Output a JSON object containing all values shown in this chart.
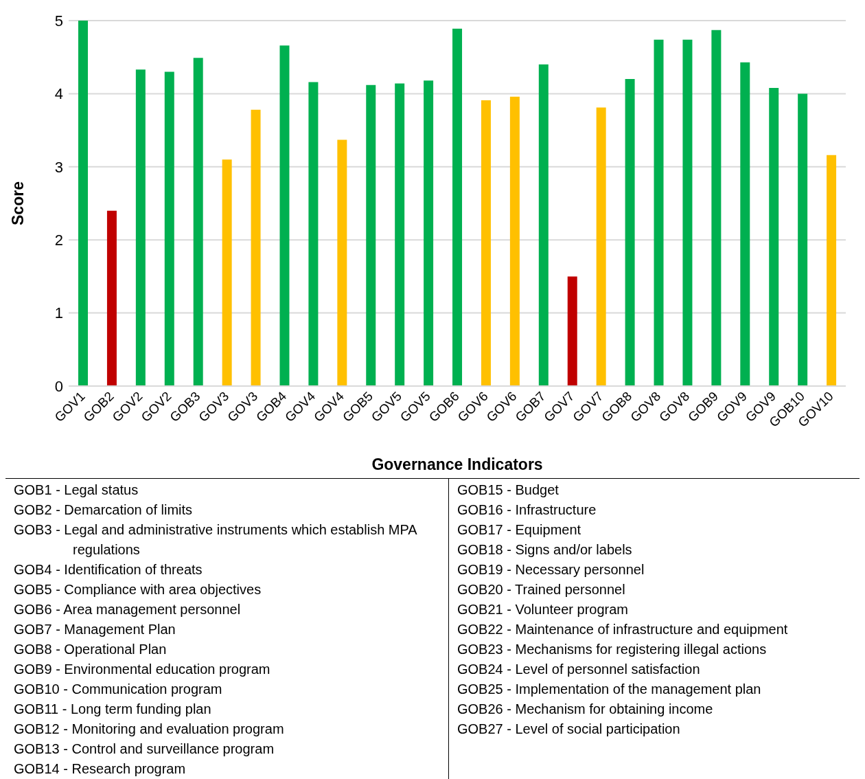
{
  "chart_data": {
    "type": "bar",
    "xlabel": "Governance Indicators",
    "ylabel": "Score",
    "categories": [
      "GOV1",
      "GOB2",
      "GOV2",
      "GOV2",
      "GOB3",
      "GOV3",
      "GOV3",
      "GOB4",
      "GOV4",
      "GOV4",
      "GOB5",
      "GOV5",
      "GOV5",
      "GOB6",
      "GOV6",
      "GOV6",
      "GOB7",
      "GOV7",
      "GOV7",
      "GOB8",
      "GOV8",
      "GOV8",
      "GOB9",
      "GOV9",
      "GOV9",
      "GOB10",
      "GOV10"
    ],
    "values": [
      5.0,
      2.4,
      4.33,
      4.3,
      4.49,
      3.1,
      3.78,
      4.66,
      4.16,
      3.37,
      4.12,
      4.14,
      4.18,
      4.89,
      3.91,
      3.96,
      4.4,
      1.5,
      3.81,
      4.2,
      4.74,
      4.74,
      4.87,
      4.43,
      4.08,
      4.0,
      3.16
    ],
    "colors": [
      "#00b050",
      "#c00000",
      "#00b050",
      "#00b050",
      "#00b050",
      "#ffc000",
      "#ffc000",
      "#00b050",
      "#00b050",
      "#ffc000",
      "#00b050",
      "#00b050",
      "#00b050",
      "#00b050",
      "#ffc000",
      "#ffc000",
      "#00b050",
      "#c00000",
      "#ffc000",
      "#00b050",
      "#00b050",
      "#00b050",
      "#00b050",
      "#00b050",
      "#00b050",
      "#00b050",
      "#ffc000"
    ],
    "ylim": [
      0,
      5
    ],
    "yticks": [
      0,
      1,
      2,
      3,
      4,
      5
    ],
    "grid": "y",
    "annotations": [
      "GOB1 - Legal status",
      "GOB2 - Demarcation of limits",
      "GOB3 - Legal and administrative instruments which establish MPA regulations",
      "GOB4 - Identification of threats",
      "GOB5 - Compliance with area objectives",
      "GOB6 - Area management personnel",
      "GOB7 - Management Plan",
      "GOB8 - Operational Plan",
      "GOB9 - Environmental education program",
      "GOB10 - Communication program",
      "GOB11 - Long term funding plan",
      "GOB12 - Monitoring and evaluation program",
      "GOB13 - Control and surveillance program",
      "GOB14 - Research program",
      "GOB15 - Budget",
      "GOB16 - Infrastructure",
      "GOB17 - Equipment",
      "GOB18 - Signs and/or labels",
      "GOB19 - Necessary personnel",
      "GOB20 - Trained personnel",
      "GOB21 - Volunteer program",
      "GOB22 - Maintenance of infrastructure and equipment",
      "GOB23 - Mechanisms for registering illegal actions",
      "GOB24 - Level of personnel satisfaction",
      "GOB25 - Implementation of the management plan",
      "GOB26 - Mechanism for obtaining income",
      "GOB27 - Level of social participation"
    ]
  }
}
